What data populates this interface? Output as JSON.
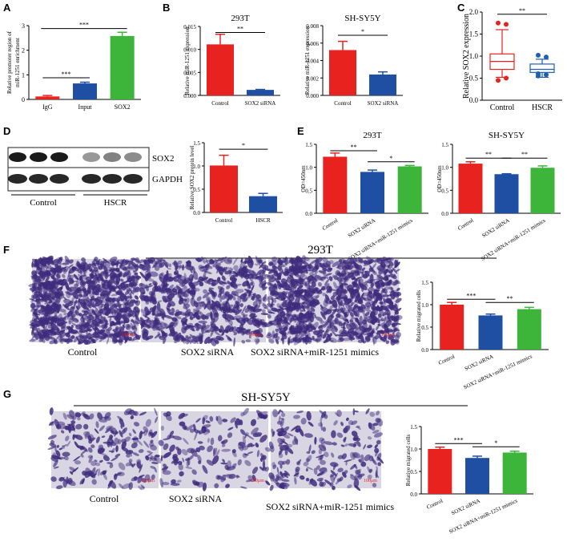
{
  "colors": {
    "red": "#e8231f",
    "blue": "#1e4fa3",
    "green": "#3db53a",
    "box_red": "#e8231f",
    "box_blue": "#1e5fb4",
    "stain_bg": "#d9d6e3",
    "stain_cell": "#3e2b7c"
  },
  "panel_letters": {
    "A": "A",
    "B": "B",
    "C": "C",
    "D": "D",
    "E": "E",
    "F": "F",
    "G": "G"
  },
  "chart_data": [
    {
      "id": "A",
      "type": "bar",
      "title": "",
      "ylabel": "Relative promoter region of\nmiR-1251 enrichment",
      "ylim": [
        0,
        3
      ],
      "yticks": [
        "0",
        "1",
        "2",
        "3"
      ],
      "yticks_v": [
        0,
        1,
        2,
        3
      ],
      "categories": [
        "IgG",
        "Input",
        "SOX2"
      ],
      "values": [
        0.12,
        0.65,
        2.58
      ],
      "errors": [
        0.04,
        0.05,
        0.15
      ],
      "colors": [
        "red",
        "blue",
        "green"
      ],
      "sig": [
        {
          "a": 0,
          "b": 1,
          "y": 0.88,
          "label": "***"
        },
        {
          "a": 0,
          "b": 2,
          "y": 2.88,
          "label": "***"
        }
      ]
    },
    {
      "id": "B1",
      "type": "bar",
      "title": "293T",
      "ylabel": "Relative miR-1251 expression",
      "ylim": [
        0,
        0.015
      ],
      "yticks": [
        "0.000",
        "0.005",
        "0.010",
        "0.015"
      ],
      "yticks_v": [
        0,
        0.005,
        0.01,
        0.015
      ],
      "categories": [
        "Control",
        "SOX2 siRNA"
      ],
      "values": [
        0.0111,
        0.0012
      ],
      "errors": [
        0.0022,
        0.0001
      ],
      "colors": [
        "red",
        "blue"
      ],
      "sig": [
        {
          "a": 0,
          "b": 1,
          "y": 0.0137,
          "label": "**"
        }
      ]
    },
    {
      "id": "B2",
      "type": "bar",
      "title": "SH-SY5Y",
      "ylabel": "Relative miR-1251 expression",
      "ylim": [
        0,
        0.008
      ],
      "yticks": [
        "0.000",
        "0.002",
        "0.004",
        "0.006",
        "0.008"
      ],
      "yticks_v": [
        0,
        0.002,
        0.004,
        0.006,
        0.008
      ],
      "categories": [
        "Control",
        "SOX2 siRNA"
      ],
      "values": [
        0.0052,
        0.0024
      ],
      "errors": [
        0.001,
        0.0003
      ],
      "colors": [
        "red",
        "blue"
      ],
      "sig": [
        {
          "a": 0,
          "b": 1,
          "y": 0.0069,
          "label": "*"
        }
      ]
    },
    {
      "id": "C",
      "type": "box",
      "title": "",
      "ylabel": "Relative SOX2 expression",
      "ylim": [
        0,
        2
      ],
      "yticks": [
        "0.0",
        "0.5",
        "1.0",
        "1.5",
        "2.0"
      ],
      "yticks_v": [
        0,
        0.5,
        1,
        1.5,
        2
      ],
      "categories": [
        "Control",
        "HSCR"
      ],
      "boxes": [
        {
          "q1": 0.7,
          "med": 0.88,
          "q3": 1.05,
          "lo": 0.52,
          "hi": 1.6,
          "outliers": [
            1.75,
            1.72,
            0.45,
            0.5
          ],
          "color": "box_red"
        },
        {
          "q1": 0.63,
          "med": 0.7,
          "q3": 0.82,
          "lo": 0.52,
          "hi": 0.93,
          "outliers": [
            1.02,
            0.98,
            0.55,
            0.58,
            0.6
          ],
          "color": "box_blue"
        }
      ],
      "sig": [
        {
          "a": 0,
          "b": 1,
          "y": 1.95,
          "label": "**"
        }
      ]
    },
    {
      "id": "D",
      "type": "bar",
      "title": "",
      "ylabel": "Relative SOX2 protein level",
      "ylim": [
        0,
        1.5
      ],
      "yticks": [
        "0.0",
        "0.5",
        "1.0",
        "1.5"
      ],
      "yticks_v": [
        0,
        0.5,
        1,
        1.5
      ],
      "categories": [
        "Control",
        "HSCR"
      ],
      "values": [
        1.01,
        0.35
      ],
      "errors": [
        0.22,
        0.06
      ],
      "colors": [
        "red",
        "blue"
      ],
      "sig": [
        {
          "a": 0,
          "b": 1,
          "y": 1.36,
          "label": "*"
        }
      ]
    },
    {
      "id": "E1",
      "type": "bar",
      "title": "293T",
      "ylabel": "OD=450nm",
      "ylim": [
        0,
        1.5
      ],
      "yticks": [
        "0.0",
        "0.5",
        "1.0",
        "1.5"
      ],
      "yticks_v": [
        0,
        0.5,
        1,
        1.5
      ],
      "categories": [
        "Control",
        "SOX2 siRNA",
        "SOX2 siRNA+miR-1251 mimics"
      ],
      "values": [
        1.23,
        0.9,
        1.02
      ],
      "errors": [
        0.08,
        0.04,
        0.02
      ],
      "colors": [
        "red",
        "blue",
        "green"
      ],
      "sig": [
        {
          "a": 0,
          "b": 1,
          "y": 1.36,
          "label": "**"
        },
        {
          "a": 1,
          "b": 2,
          "y": 1.12,
          "label": "*"
        }
      ]
    },
    {
      "id": "E2",
      "type": "bar",
      "title": "SH-SY5Y",
      "ylabel": "OD=450nm",
      "ylim": [
        0,
        1.5
      ],
      "yticks": [
        "0.0",
        "0.5",
        "1.0",
        "1.5"
      ],
      "yticks_v": [
        0,
        0.5,
        1,
        1.5
      ],
      "categories": [
        "Control",
        "SOX2 siRNA",
        "SOX2 siRNA+miR-1251 mimics"
      ],
      "values": [
        1.08,
        0.85,
        0.99
      ],
      "errors": [
        0.04,
        0.01,
        0.04
      ],
      "colors": [
        "red",
        "blue",
        "green"
      ],
      "sig": [
        {
          "a": 0,
          "b": 1,
          "y": 1.2,
          "label": "**"
        },
        {
          "a": 1,
          "b": 2,
          "y": 1.2,
          "label": "**"
        }
      ]
    },
    {
      "id": "F",
      "type": "bar",
      "title": "",
      "ylabel": "Relative migrated cells",
      "ylim": [
        0,
        1.5
      ],
      "yticks": [
        "0.0",
        "0.5",
        "1.0",
        "1.5"
      ],
      "yticks_v": [
        0,
        0.5,
        1,
        1.5
      ],
      "categories": [
        "Control",
        "SOX2 siRNA",
        "SOX2 siRNA+miR-1251 mimics"
      ],
      "values": [
        1.0,
        0.76,
        0.9
      ],
      "errors": [
        0.05,
        0.03,
        0.04
      ],
      "colors": [
        "red",
        "blue",
        "green"
      ],
      "sig": [
        {
          "a": 0,
          "b": 1,
          "y": 1.12,
          "label": "***"
        },
        {
          "a": 1,
          "b": 2,
          "y": 1.05,
          "label": "**"
        }
      ]
    },
    {
      "id": "G",
      "type": "bar",
      "title": "",
      "ylabel": "Relative migrated cells",
      "ylim": [
        0,
        1.5
      ],
      "yticks": [
        "0.0",
        "0.5",
        "1.0",
        "1.5"
      ],
      "yticks_v": [
        0,
        0.5,
        1,
        1.5
      ],
      "categories": [
        "Control",
        "SOX2 siRNA",
        "SOX2 siRNA+miR-1251 mimics"
      ],
      "values": [
        1.0,
        0.8,
        0.92
      ],
      "errors": [
        0.04,
        0.04,
        0.03
      ],
      "colors": [
        "red",
        "blue",
        "green"
      ],
      "sig": [
        {
          "a": 0,
          "b": 1,
          "y": 1.12,
          "label": "***"
        },
        {
          "a": 1,
          "b": 2,
          "y": 1.05,
          "label": "*"
        }
      ]
    }
  ],
  "western": {
    "band_labels": [
      "SOX2",
      "GAPDH"
    ],
    "group_labels": [
      "Control",
      "HSCR"
    ]
  },
  "micro_F": {
    "title": "293T",
    "captions": [
      "Control",
      "SOX2 siRNA",
      "SOX2 siRNA+miR-1251 mimics"
    ],
    "scale_label": "100μm"
  },
  "micro_G": {
    "title": "SH-SY5Y",
    "captions": [
      "Control",
      "SOX2 siRNA",
      "SOX2 siRNA+miR-1251 mimics"
    ],
    "scale_label": "100μm"
  }
}
